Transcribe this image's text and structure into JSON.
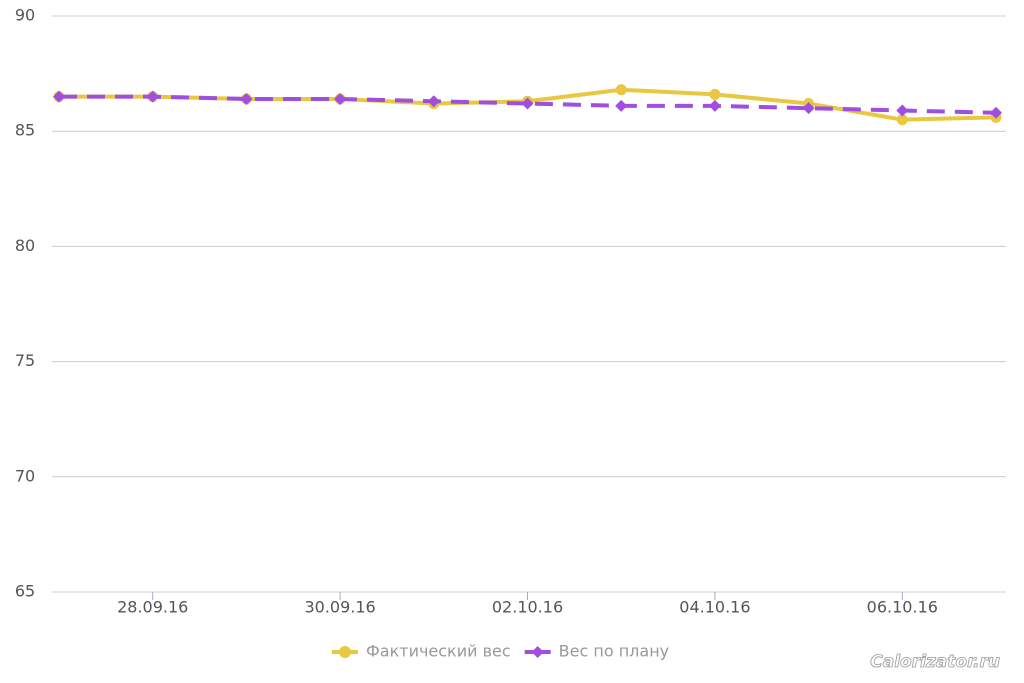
{
  "chart_data": {
    "type": "line",
    "categories": [
      null,
      "28.09.16",
      null,
      "30.09.16",
      null,
      "02.10.16",
      null,
      "04.10.16",
      null,
      "06.10.16",
      null
    ],
    "series": [
      {
        "name": "Фактический вес",
        "color": "#e8c840",
        "dash": false,
        "marker": "circle",
        "values": [
          86.5,
          86.5,
          86.4,
          86.4,
          86.2,
          86.3,
          86.8,
          86.6,
          86.2,
          85.5,
          85.6
        ]
      },
      {
        "name": "Вес по плану",
        "color": "#a04ee0",
        "dash": true,
        "marker": "diamond",
        "values": [
          86.5,
          86.5,
          86.4,
          86.4,
          86.3,
          86.2,
          86.1,
          86.1,
          86.0,
          85.9,
          85.8
        ]
      }
    ],
    "ylim": [
      65,
      90
    ],
    "yticks": [
      65,
      70,
      75,
      80,
      85,
      90
    ],
    "grid": true,
    "legend": "bottom"
  },
  "watermark": "Calorizator.ru"
}
